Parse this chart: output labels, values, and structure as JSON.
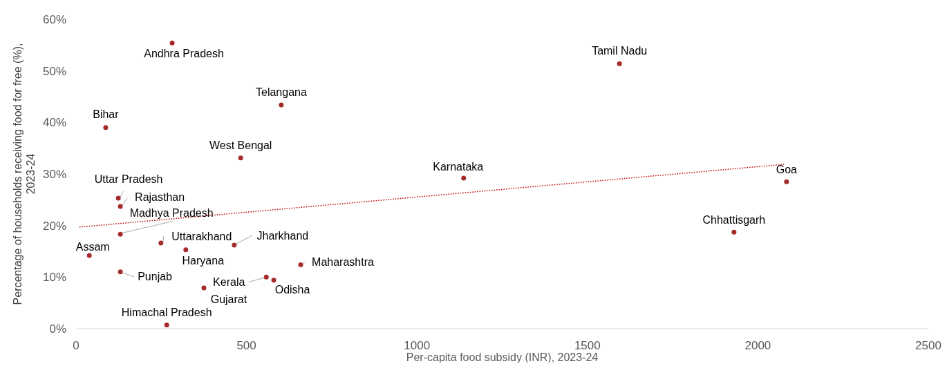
{
  "chart_data": {
    "type": "scatter",
    "xlabel": "Per-capita food subsidy (INR), 2023-24",
    "ylabel": "Percentage of households receiving food for free (%), 2023-24",
    "xlim": [
      0,
      2500
    ],
    "xticks": [
      0,
      500,
      1000,
      1500,
      2000,
      2500
    ],
    "ylim": [
      0,
      60
    ],
    "yticks": [
      {
        "value": 0,
        "label": "0%"
      },
      {
        "value": 10,
        "label": "10%"
      },
      {
        "value": 20,
        "label": "20%"
      },
      {
        "value": 30,
        "label": "30%"
      },
      {
        "value": 40,
        "label": "40%"
      },
      {
        "value": 50,
        "label": "50%"
      },
      {
        "value": 60,
        "label": "60%"
      }
    ],
    "grid": false,
    "line_style": "dotted",
    "series": [
      {
        "color": "#a52a2a",
        "marker": "circle",
        "x": [
          282,
          1594,
          602,
          87,
          483,
          1137,
          2084,
          1930,
          124,
          130,
          130,
          39,
          249,
          322,
          464,
          659,
          130,
          558,
          580,
          375,
          266
        ],
        "values": [
          55.4,
          51.4,
          43.4,
          39.0,
          33.1,
          29.2,
          28.5,
          18.7,
          25.3,
          23.7,
          18.3,
          14.2,
          16.6,
          15.3,
          16.2,
          12.4,
          11.0,
          10.0,
          9.4,
          7.9,
          0.7
        ]
      },
      {
        "type": "line",
        "color": "#c00000",
        "marker": "none",
        "x": [
          10,
          2080
        ],
        "values": [
          19.7,
          31.9
        ]
      }
    ],
    "annotations": [
      {
        "text": "Andhra Pradesh",
        "x": 282,
        "y": 55.4
      },
      {
        "text": "Tamil Nadu",
        "x": 1594,
        "y": 51.4
      },
      {
        "text": "Telangana",
        "x": 602,
        "y": 43.4
      },
      {
        "text": "Bihar",
        "x": 87,
        "y": 39.0
      },
      {
        "text": "West Bengal",
        "x": 483,
        "y": 33.1
      },
      {
        "text": "Karnataka",
        "x": 1137,
        "y": 29.2
      },
      {
        "text": "Goa",
        "x": 2084,
        "y": 28.5
      },
      {
        "text": "Chhattisgarh",
        "x": 1930,
        "y": 18.7
      },
      {
        "text": "Uttar Pradesh",
        "x": 124,
        "y": 25.3
      },
      {
        "text": "Rajasthan",
        "x": 130,
        "y": 23.7
      },
      {
        "text": "Madhya Pradesh",
        "x": 130,
        "y": 18.3
      },
      {
        "text": "Assam",
        "x": 39,
        "y": 14.2
      },
      {
        "text": "Uttarakhand",
        "x": 249,
        "y": 16.6
      },
      {
        "text": "Haryana",
        "x": 322,
        "y": 15.3
      },
      {
        "text": "Jharkhand",
        "x": 464,
        "y": 16.2
      },
      {
        "text": "Maharashtra",
        "x": 659,
        "y": 12.4
      },
      {
        "text": "Punjab",
        "x": 130,
        "y": 11.0
      },
      {
        "text": "Kerala",
        "x": 558,
        "y": 10.0
      },
      {
        "text": "Odisha",
        "x": 580,
        "y": 9.4
      },
      {
        "text": "Gujarat",
        "x": 375,
        "y": 7.9
      },
      {
        "text": "Himachal Pradesh",
        "x": 266,
        "y": 0.7
      }
    ]
  }
}
